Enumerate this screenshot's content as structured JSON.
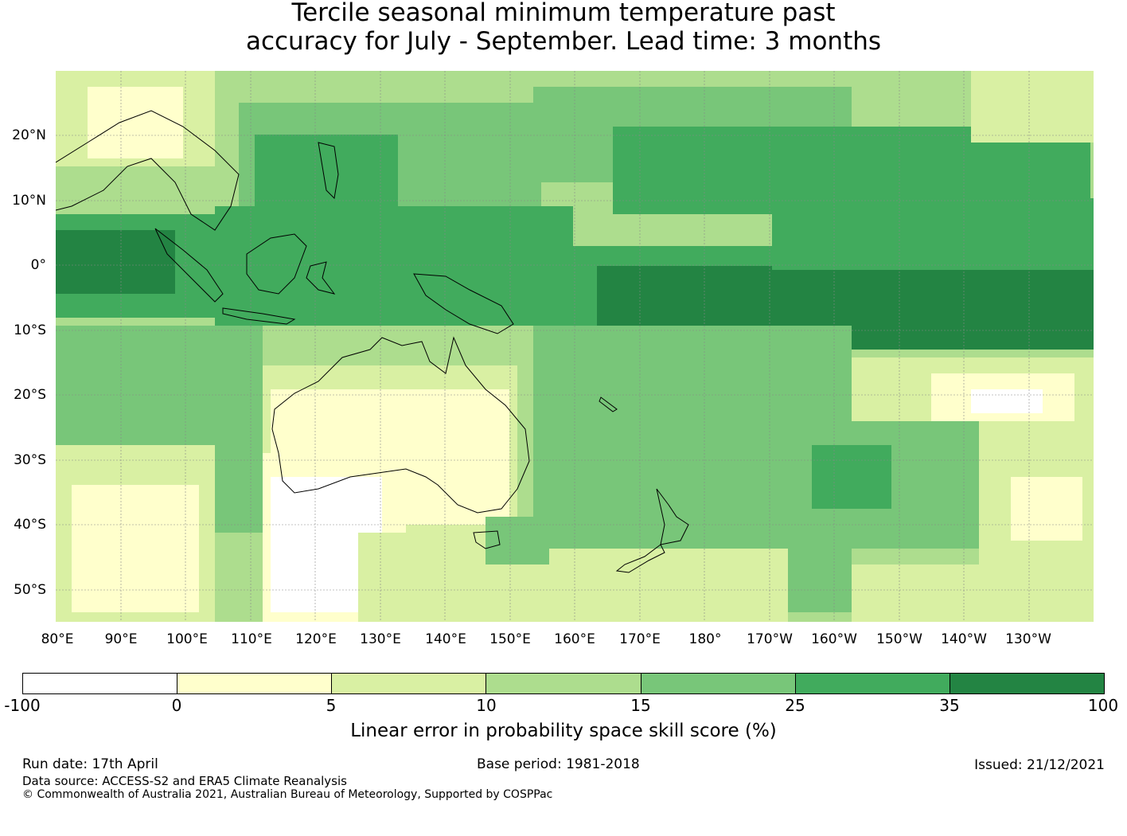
{
  "title": {
    "line1": "Tercile seasonal minimum temperature past",
    "line2": "accuracy for July - September. Lead time: 3 months"
  },
  "map": {
    "lat_labels": [
      "20°N",
      "10°N",
      "0°",
      "10°S",
      "20°S",
      "30°S",
      "40°S",
      "50°S"
    ],
    "lon_labels": [
      "80°E",
      "90°E",
      "100°E",
      "110°E",
      "120°E",
      "130°E",
      "140°E",
      "150°E",
      "160°E",
      "170°E",
      "180°",
      "170°W",
      "160°W",
      "150°W",
      "140°W",
      "130°W"
    ],
    "land_outline_color": "#000000",
    "gridline_color": "#888888"
  },
  "colorbar": {
    "ticks": [
      "-100",
      "0",
      "5",
      "10",
      "15",
      "25",
      "35",
      "100"
    ],
    "colors": [
      "#ffffff",
      "#ffffcc",
      "#d9f0a3",
      "#addd8e",
      "#78c679",
      "#41ab5d",
      "#238443"
    ],
    "label": "Linear error in probability space skill score (%)"
  },
  "footer": {
    "run_date": "Run date: 17th April",
    "base_period": "Base period: 1981-2018",
    "issued": "Issued: 21/12/2021",
    "data_source": "Data source: ACCESS-S2 and ERA5 Climate Reanalysis",
    "copyright": "© Commonwealth of Australia 2021, Australian Bureau of Meteorology, Supported by COSPPac"
  }
}
